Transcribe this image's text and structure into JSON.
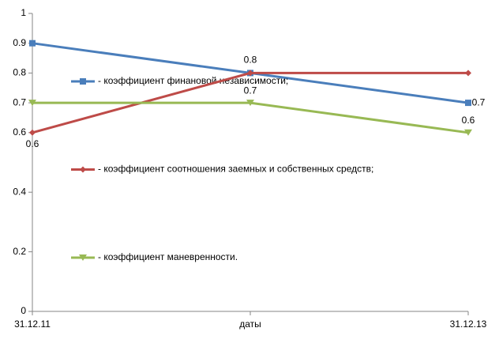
{
  "chart_data": {
    "type": "line",
    "categories": [
      "31.12.11",
      "даты",
      "31.12.13"
    ],
    "ylim": [
      0,
      1
    ],
    "yticks": [
      0,
      0.2,
      0.4,
      0.6,
      0.7,
      0.8,
      0.9,
      1
    ],
    "grid": false,
    "legend": "left",
    "series": [
      {
        "name": "- коэффициент финановой независимости;",
        "color": "#4a7ebb",
        "marker": "square",
        "values": [
          0.9,
          0.8,
          0.7
        ],
        "data_labels": [
          false,
          true,
          true
        ]
      },
      {
        "name": "- коэффициент соотношения заемных и собственных средств;",
        "color": "#be4b48",
        "marker": "diamond",
        "values": [
          0.6,
          0.8,
          0.8
        ],
        "data_labels": [
          true,
          false,
          false
        ]
      },
      {
        "name": "- коэффициент маневренности.",
        "color": "#98b954",
        "marker": "triangle",
        "values": [
          0.7,
          0.7,
          0.6
        ],
        "data_labels": [
          false,
          true,
          true
        ]
      }
    ]
  }
}
